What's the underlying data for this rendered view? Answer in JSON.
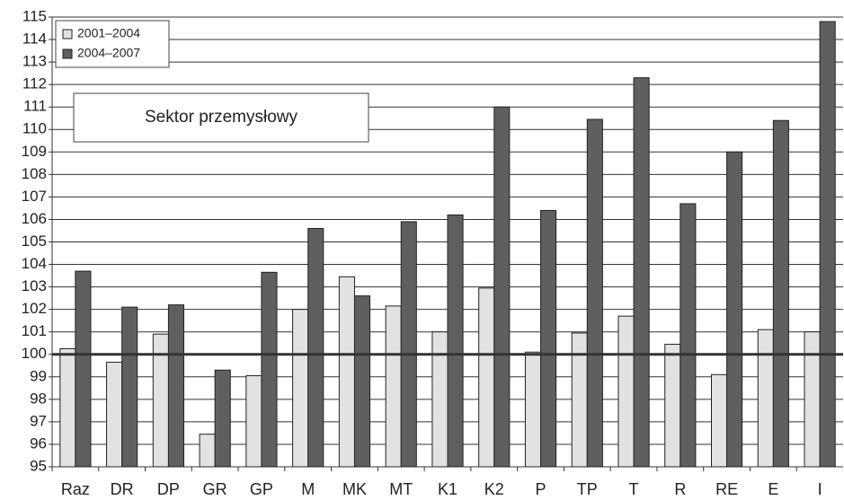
{
  "chart_data": {
    "type": "bar",
    "annotation": "Sektor przemysłowy",
    "categories": [
      "Raz",
      "DR",
      "DP",
      "GR",
      "GP",
      "M",
      "MK",
      "MT",
      "K1",
      "K2",
      "P",
      "TP",
      "T",
      "R",
      "RE",
      "E",
      "I"
    ],
    "series": [
      {
        "name": "2001–2004",
        "color": "#e2e2e2",
        "values": [
          100.25,
          99.65,
          100.9,
          96.45,
          99.05,
          102.0,
          103.45,
          102.15,
          101.0,
          102.95,
          100.1,
          100.95,
          101.7,
          100.45,
          99.1,
          101.1,
          101.0
        ]
      },
      {
        "name": "2004–2007",
        "color": "#5f5f5f",
        "values": [
          103.7,
          102.1,
          102.2,
          99.3,
          103.65,
          105.6,
          102.6,
          105.9,
          106.2,
          111.0,
          106.4,
          110.45,
          112.3,
          106.7,
          109.0,
          110.4,
          114.8
        ]
      }
    ],
    "reference_line": 100,
    "ylim": [
      95,
      115
    ],
    "yticks": [
      95,
      96,
      97,
      98,
      99,
      100,
      101,
      102,
      103,
      104,
      105,
      106,
      107,
      108,
      109,
      110,
      111,
      112,
      113,
      114,
      115
    ],
    "grid": true,
    "legend": "upper left"
  }
}
